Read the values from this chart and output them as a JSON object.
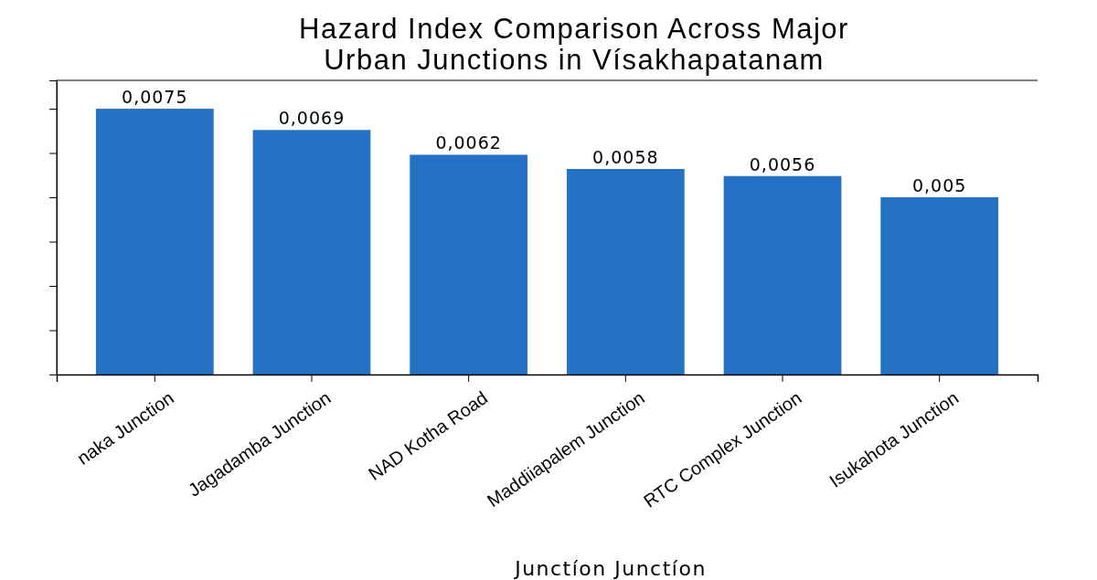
{
  "chart_data": {
    "type": "bar",
    "title": "Hazard Index Comparison Across Major\nUrban Junctions in Vísakhapatanam",
    "xlabel": "Junctíon Junctíon",
    "categories": [
      "naka Junction",
      "Jagadamba Junction",
      "NAD Kotha Road",
      "Maddiiapalem Junction",
      "RTC Complex Junction",
      "Isukahota Junction"
    ],
    "values": [
      0.0075,
      0.0069,
      0.0062,
      0.0058,
      0.0056,
      0.005
    ],
    "value_labels": [
      "0,0075",
      "0,0069",
      "0,0062",
      "0,0058",
      "0,0056",
      "0,005"
    ],
    "color": "#2572c4",
    "ylim": [
      0,
      0.0083
    ],
    "yticks": [
      {
        "value": 0,
        "label": null
      },
      {
        "value": 0.00125,
        "label": null
      },
      {
        "value": 0.0025,
        "label": null
      },
      {
        "value": 0.00375,
        "label": null
      },
      {
        "value": 0.005,
        "label": null
      },
      {
        "value": 0.00625,
        "label": null
      },
      {
        "value": 0.0075,
        "label": null
      }
    ],
    "tick_labels": "x",
    "grid": false
  }
}
